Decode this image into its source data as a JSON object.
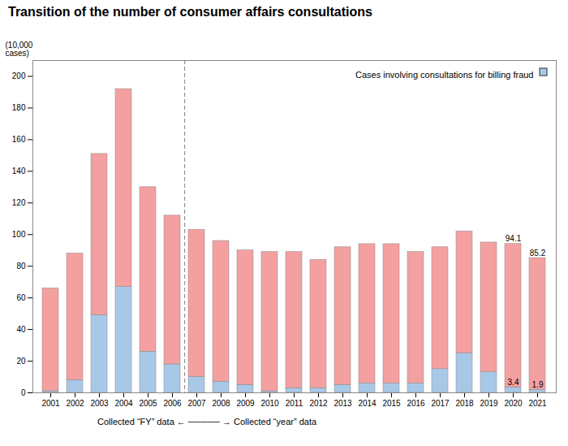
{
  "chart_data": {
    "type": "bar",
    "stacked": true,
    "title": "Transition of the number of consumer affairs consultations",
    "ylabel": "(10,000\ncases)",
    "categories": [
      "2001",
      "2002",
      "2003",
      "2004",
      "2005",
      "2006",
      "2007",
      "2008",
      "2009",
      "2010",
      "2011",
      "2012",
      "2013",
      "2014",
      "2015",
      "2016",
      "2017",
      "2018",
      "2019",
      "2020",
      "2021"
    ],
    "series": [
      {
        "name": "Cases involving consultations for billing fraud",
        "color": "#a8c8e8",
        "values": [
          1,
          8,
          49,
          67,
          26,
          18,
          10,
          7,
          5,
          1,
          3,
          3,
          5,
          6,
          6,
          6,
          15,
          25,
          13,
          3.4,
          1.9
        ]
      },
      {
        "color": "#f4a0a0",
        "values": [
          65,
          80,
          102,
          125,
          104,
          94,
          93,
          89,
          85,
          88,
          86,
          81,
          87,
          88,
          88,
          83,
          77,
          77,
          82,
          90.7,
          83.3
        ]
      }
    ],
    "ylim": [
      0,
      210
    ],
    "yticks": [
      0,
      20,
      40,
      60,
      80,
      100,
      120,
      140,
      160,
      180,
      200
    ],
    "legend": "upper right",
    "annotations": [
      {
        "text": "94.1",
        "x": "2020",
        "y": 94.1
      },
      {
        "text": "85.2",
        "x": "2021",
        "y": 85.2
      },
      {
        "text": "3.4",
        "x": "2020",
        "y": 3.4
      },
      {
        "text": "1.9",
        "x": "2021",
        "y": 1.9
      },
      {
        "type": "vline",
        "between": [
          "2006",
          "2007"
        ],
        "line_style": "dashed"
      },
      {
        "text": "Collected “FY” data ← ───── → Collected “year” data"
      }
    ]
  }
}
